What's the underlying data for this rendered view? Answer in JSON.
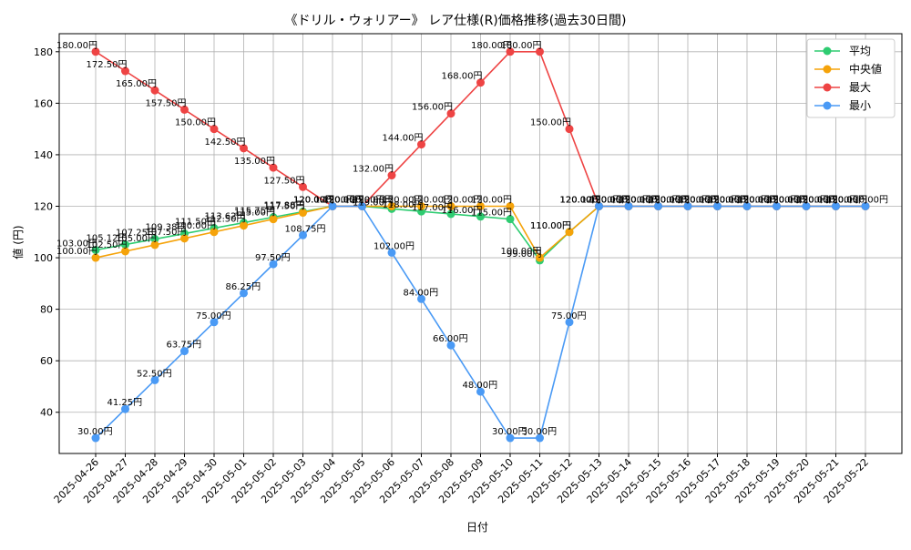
{
  "chart_data": {
    "type": "line",
    "title": "《ドリル・ウォリアー》 レア仕様(R)価格推移(過去30日間)",
    "xlabel": "日付",
    "ylabel": "値 (円)",
    "ylim": [
      24,
      187
    ],
    "yticks": [
      40,
      60,
      80,
      100,
      120,
      140,
      160,
      180
    ],
    "grid": true,
    "legend_position": "top-right",
    "label_suffix": "円",
    "categories": [
      "2025-04-26",
      "2025-04-27",
      "2025-04-28",
      "2025-04-29",
      "2025-04-30",
      "2025-05-01",
      "2025-05-02",
      "2025-05-03",
      "2025-05-04",
      "2025-05-05",
      "2025-05-06",
      "2025-05-07",
      "2025-05-08",
      "2025-05-09",
      "2025-05-10",
      "2025-05-11",
      "2025-05-12",
      "2025-05-13",
      "2025-05-14",
      "2025-05-15",
      "2025-05-16",
      "2025-05-17",
      "2025-05-18",
      "2025-05-19",
      "2025-05-20",
      "2025-05-21",
      "2025-05-22"
    ],
    "series": [
      {
        "name": "平均",
        "color": "#2ecc71",
        "label_pos": "left",
        "values": [
          103.0,
          105.12,
          107.25,
          109.38,
          111.5,
          113.62,
          115.75,
          117.88,
          120.0,
          120.0,
          119.0,
          118.0,
          117.0,
          116.0,
          115.0,
          99.0,
          110.0,
          120.0,
          120.0,
          120.0,
          120.0,
          120.0,
          120.0,
          120.0,
          120.0,
          120.0,
          120.0
        ]
      },
      {
        "name": "中央値",
        "color": "#f5a30a",
        "label_pos": "left",
        "values": [
          100.0,
          102.5,
          105.0,
          107.5,
          110.0,
          112.5,
          115.0,
          117.5,
          120.0,
          120.0,
          120.0,
          120.0,
          120.0,
          120.0,
          120.0,
          100.0,
          110.0,
          120.0,
          120.0,
          120.0,
          120.0,
          120.0,
          120.0,
          120.0,
          120.0,
          120.0,
          120.0
        ]
      },
      {
        "name": "最大",
        "color": "#ee4444",
        "label_pos": "left",
        "values": [
          180.0,
          172.5,
          165.0,
          157.5,
          150.0,
          142.5,
          135.0,
          127.5,
          120.0,
          120.0,
          132.0,
          144.0,
          156.0,
          168.0,
          180.0,
          180.0,
          150.0,
          120.0,
          120.0,
          120.0,
          120.0,
          120.0,
          120.0,
          120.0,
          120.0,
          120.0,
          120.0
        ]
      },
      {
        "name": "最小",
        "color": "#4a9af5",
        "label_pos": "right",
        "values": [
          30.0,
          41.25,
          52.5,
          63.75,
          75.0,
          86.25,
          97.5,
          108.75,
          120.0,
          120.0,
          102.0,
          84.0,
          66.0,
          48.0,
          30.0,
          30.0,
          75.0,
          120.0,
          120.0,
          120.0,
          120.0,
          120.0,
          120.0,
          120.0,
          120.0,
          120.0,
          120.0
        ]
      }
    ]
  }
}
